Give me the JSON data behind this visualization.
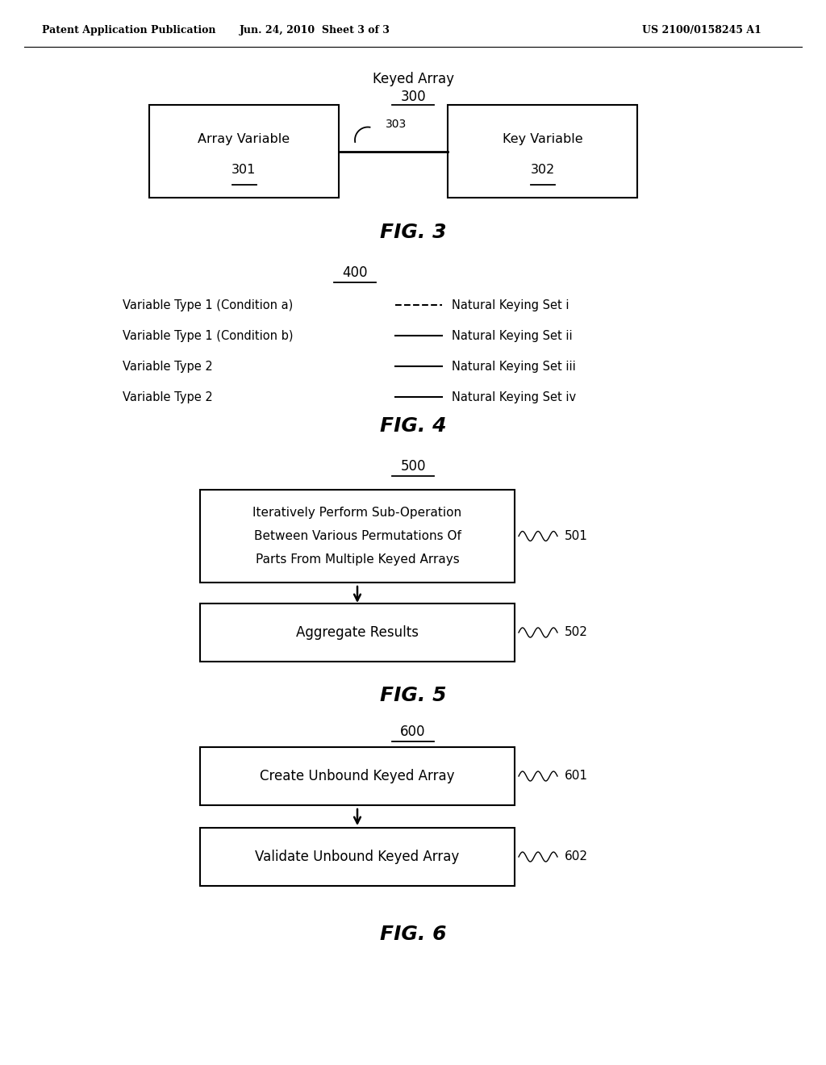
{
  "bg_color": "white",
  "header_left": "Patent Application Publication",
  "header_mid": "Jun. 24, 2010  Sheet 3 of 3",
  "header_right": "US 2100/0158245 A1",
  "fig3": {
    "title": "Keyed Array",
    "title_num": "300",
    "box1_label": "Array Variable",
    "box1_num": "301",
    "box2_label": "Key Variable",
    "box2_num": "302",
    "connector_label": "303",
    "caption": "FIG. 3"
  },
  "fig4": {
    "title_num": "400",
    "caption": "FIG. 4",
    "rows": [
      {
        "left": "Variable Type 1 (Condition a)",
        "line": "dashed",
        "right": "Natural Keying Set i"
      },
      {
        "left": "Variable Type 1 (Condition b)",
        "line": "solid",
        "right": "Natural Keying Set ii"
      },
      {
        "left": "Variable Type 2",
        "line": "solid",
        "right": "Natural Keying Set iii"
      },
      {
        "left": "Variable Type 2",
        "line": "solid",
        "right": "Natural Keying Set iv"
      }
    ]
  },
  "fig5": {
    "title_num": "500",
    "box1_line1": "Iteratively Perform Sub-Operation",
    "box1_line2": "Between Various Permutations Of",
    "box1_line3": "Parts From Multiple Keyed Arrays",
    "box1_num": "501",
    "box2_label": "Aggregate Results",
    "box2_num": "502",
    "caption": "FIG. 5"
  },
  "fig6": {
    "title_num": "600",
    "box1_label": "Create Unbound Keyed Array",
    "box1_num": "601",
    "box2_label": "Validate Unbound Keyed Array",
    "box2_num": "602",
    "caption": "FIG. 6"
  }
}
